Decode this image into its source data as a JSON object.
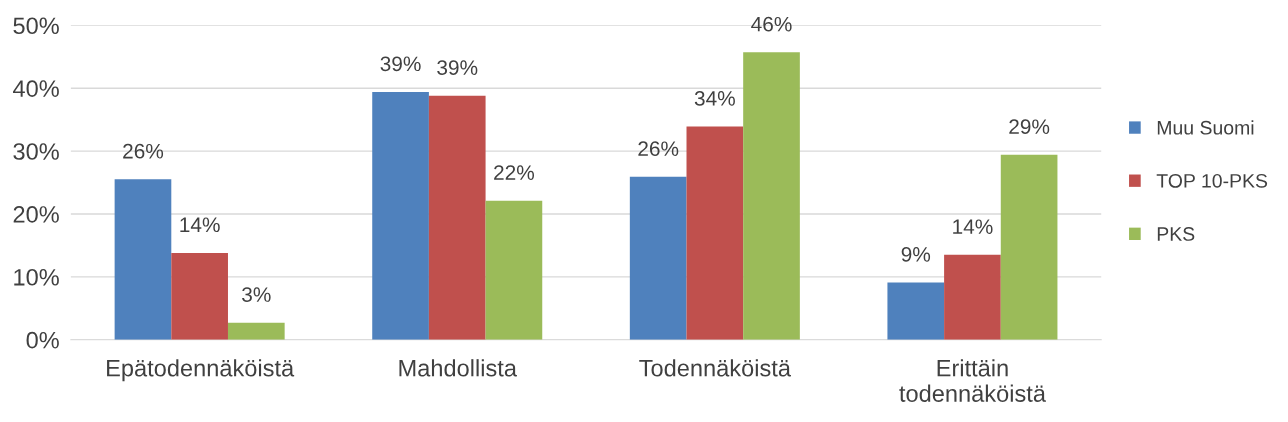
{
  "chart_data": {
    "type": "bar",
    "categories": [
      "Epätodennäköistä",
      "Mahdollista",
      "Todennäköistä",
      "Erittäin todennäköistä"
    ],
    "series": [
      {
        "name": "Muu Suomi",
        "color": "#4f81bd",
        "values": [
          25.5,
          39.4,
          25.9,
          9.1
        ],
        "value_labels": [
          "26%",
          "39%",
          "26%",
          "9%"
        ]
      },
      {
        "name": "TOP 10-PKS",
        "color": "#c0504d",
        "values": [
          13.8,
          38.8,
          33.9,
          13.5
        ],
        "value_labels": [
          "14%",
          "39%",
          "34%",
          "14%"
        ]
      },
      {
        "name": "PKS",
        "color": "#9bbb59",
        "values": [
          2.7,
          22.1,
          45.7,
          29.4
        ],
        "value_labels": [
          "3%",
          "22%",
          "46%",
          "29%"
        ]
      }
    ],
    "ylim": [
      0,
      50
    ],
    "yticks": [
      {
        "value": 0,
        "label": "0%"
      },
      {
        "value": 10,
        "label": "10%"
      },
      {
        "value": 20,
        "label": "20%"
      },
      {
        "value": 30,
        "label": "30%"
      },
      {
        "value": 40,
        "label": "40%"
      },
      {
        "value": 50,
        "label": "50%"
      }
    ],
    "grid": "y",
    "legend": "right"
  }
}
